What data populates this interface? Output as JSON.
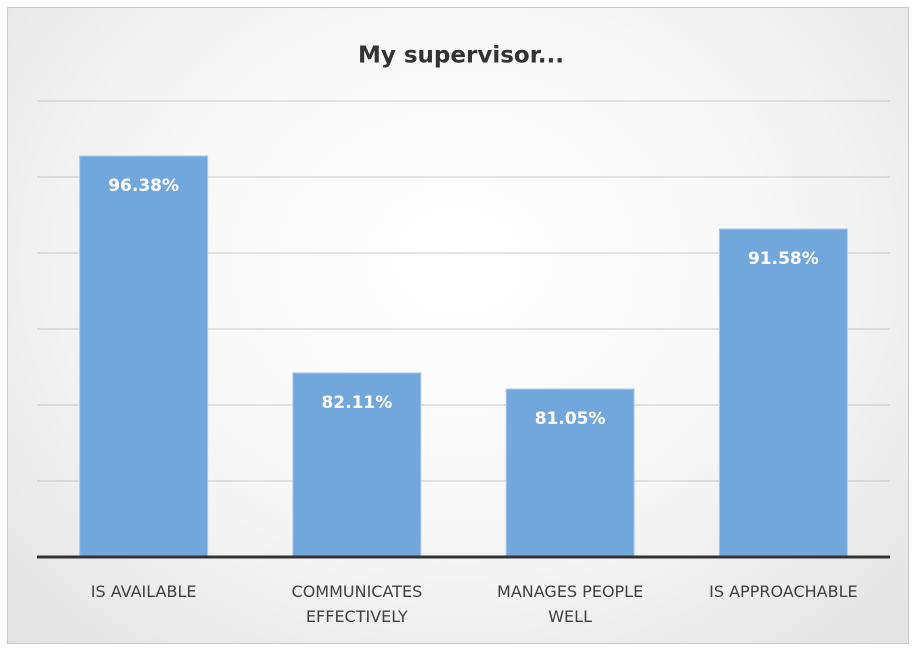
{
  "chart_data": {
    "type": "bar",
    "title": "My supervisor...",
    "categories": [
      "IS AVAILABLE",
      "COMMUNICATES EFFECTIVELY",
      "MANAGES PEOPLE WELL",
      "IS APPROACHABLE"
    ],
    "values": [
      96.38,
      82.11,
      81.05,
      91.58
    ],
    "value_labels": [
      "96.38%",
      "82.11%",
      "81.05%",
      "91.58%"
    ],
    "color": "#72a7db",
    "ylim": [
      70,
      100
    ],
    "yticks": [
      70,
      75,
      80,
      85,
      90,
      95,
      100
    ],
    "grid": true
  }
}
